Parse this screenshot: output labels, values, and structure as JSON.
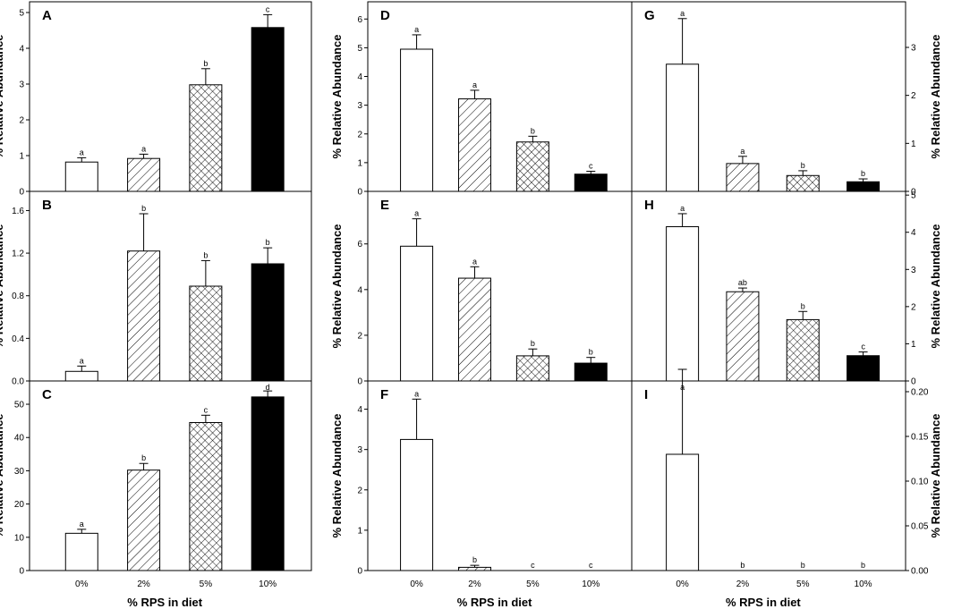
{
  "colors": {
    "ink": "#000000",
    "paper": "#ffffff"
  },
  "fills": [
    "open",
    "diagonal-hatch",
    "cross-hatch",
    "solid"
  ],
  "chart_data": [
    {
      "id": "A",
      "type": "bar",
      "categories": [
        "0%",
        "2%",
        "5%",
        "10%"
      ],
      "values": [
        0.82,
        0.92,
        2.98,
        4.58
      ],
      "errors": [
        0.12,
        0.12,
        0.45,
        0.36
      ],
      "significance": [
        "a",
        "a",
        "b",
        "c"
      ],
      "ylim": [
        0,
        5.3
      ],
      "yticks": [
        "0",
        "1",
        "2",
        "3",
        "4",
        "5"
      ],
      "ytickValues": [
        0,
        1,
        2,
        3,
        4,
        5
      ],
      "ylabel": "% Relative Abundance",
      "xlabel": "",
      "axis": "left"
    },
    {
      "id": "B",
      "type": "bar",
      "categories": [
        "0%",
        "2%",
        "5%",
        "10%"
      ],
      "values": [
        0.09,
        1.22,
        0.89,
        1.1
      ],
      "errors": [
        0.05,
        0.35,
        0.24,
        0.15
      ],
      "significance": [
        "a",
        "b",
        "b",
        "b"
      ],
      "ylim": [
        0,
        1.78
      ],
      "yticks": [
        "0.0",
        "0.4",
        "0.8",
        "1.2",
        "1.6"
      ],
      "ytickValues": [
        0,
        0.4,
        0.8,
        1.2,
        1.6
      ],
      "ylabel": "% Relative Abundance",
      "xlabel": "",
      "axis": "left"
    },
    {
      "id": "C",
      "type": "bar",
      "categories": [
        "0%",
        "2%",
        "5%",
        "10%"
      ],
      "values": [
        11.2,
        30.2,
        44.5,
        52.2
      ],
      "errors": [
        1.2,
        2.0,
        2.2,
        1.8
      ],
      "significance": [
        "a",
        "b",
        "c",
        "d"
      ],
      "ylim": [
        0,
        57
      ],
      "yticks": [
        "0",
        "10",
        "20",
        "30",
        "40",
        "50"
      ],
      "ytickValues": [
        0,
        10,
        20,
        30,
        40,
        50
      ],
      "ylabel": "% Relative Abundance",
      "xlabel": "% RPS in diet",
      "axis": "left"
    },
    {
      "id": "D",
      "type": "bar",
      "categories": [
        "0%",
        "2%",
        "5%",
        "10%"
      ],
      "values": [
        4.95,
        3.22,
        1.72,
        0.6
      ],
      "errors": [
        0.5,
        0.3,
        0.2,
        0.1
      ],
      "significance": [
        "a",
        "a",
        "b",
        "c"
      ],
      "ylim": [
        0,
        6.6
      ],
      "yticks": [
        "0",
        "1",
        "2",
        "3",
        "4",
        "5",
        "6"
      ],
      "ytickValues": [
        0,
        1,
        2,
        3,
        4,
        5,
        6
      ],
      "ylabel": "% Relative Abundance",
      "xlabel": "",
      "axis": "left"
    },
    {
      "id": "E",
      "type": "bar",
      "categories": [
        "0%",
        "2%",
        "5%",
        "10%"
      ],
      "values": [
        5.9,
        4.5,
        1.1,
        0.78
      ],
      "errors": [
        1.2,
        0.5,
        0.3,
        0.25
      ],
      "significance": [
        "a",
        "a",
        "b",
        "b"
      ],
      "ylim": [
        0,
        8.3
      ],
      "yticks": [
        "0",
        "2",
        "4",
        "6"
      ],
      "ytickValues": [
        0,
        2,
        4,
        6
      ],
      "ylabel": "% Relative Abundance",
      "xlabel": "",
      "axis": "left"
    },
    {
      "id": "F",
      "type": "bar",
      "categories": [
        "0%",
        "2%",
        "5%",
        "10%"
      ],
      "values": [
        3.25,
        0.08,
        0,
        0
      ],
      "errors": [
        1.0,
        0.05,
        0,
        0
      ],
      "significance": [
        "a",
        "b",
        "c",
        "c"
      ],
      "ylim": [
        0,
        4.7
      ],
      "yticks": [
        "0",
        "1",
        "2",
        "3",
        "4"
      ],
      "ytickValues": [
        0,
        1,
        2,
        3,
        4
      ],
      "ylabel": "% Relative Abundance",
      "xlabel": "% RPS in diet",
      "axis": "left"
    },
    {
      "id": "G",
      "type": "bar",
      "categories": [
        "0%",
        "2%",
        "5%",
        "10%"
      ],
      "values": [
        2.65,
        0.58,
        0.33,
        0.2
      ],
      "errors": [
        0.95,
        0.15,
        0.1,
        0.06
      ],
      "significance": [
        "a",
        "a",
        "b",
        "b"
      ],
      "ylim": [
        0,
        3.95
      ],
      "yticks": [
        "0",
        "1",
        "2",
        "3"
      ],
      "ytickValues": [
        0,
        1,
        2,
        3
      ],
      "ylabel": "% Relative Abundance",
      "xlabel": "",
      "axis": "right"
    },
    {
      "id": "H",
      "type": "bar",
      "categories": [
        "0%",
        "2%",
        "5%",
        "10%"
      ],
      "values": [
        4.15,
        2.4,
        1.65,
        0.68
      ],
      "errors": [
        0.35,
        0.1,
        0.22,
        0.1
      ],
      "significance": [
        "a",
        "ab",
        "b",
        "c"
      ],
      "ylim": [
        0,
        5.1
      ],
      "yticks": [
        "0",
        "1",
        "2",
        "3",
        "4",
        "5"
      ],
      "ytickValues": [
        0,
        1,
        2,
        3,
        4,
        5
      ],
      "ylabel": "% Relative Abundance",
      "xlabel": "",
      "axis": "right"
    },
    {
      "id": "I",
      "type": "bar",
      "categories": [
        "0%",
        "2%",
        "5%",
        "10%"
      ],
      "values": [
        0.13,
        0,
        0,
        0
      ],
      "errors": [
        0.095,
        0,
        0,
        0
      ],
      "significance": [
        "a",
        "b",
        "b",
        "b"
      ],
      "ylim": [
        0,
        0.212
      ],
      "yticks": [
        "0.00",
        "0.05",
        "0.10",
        "0.15",
        "0.20"
      ],
      "ytickValues": [
        0,
        0.05,
        0.1,
        0.15,
        0.2
      ],
      "ylabel": "% Relative Abundance",
      "xlabel": "% RPS in diet",
      "axis": "right"
    }
  ]
}
